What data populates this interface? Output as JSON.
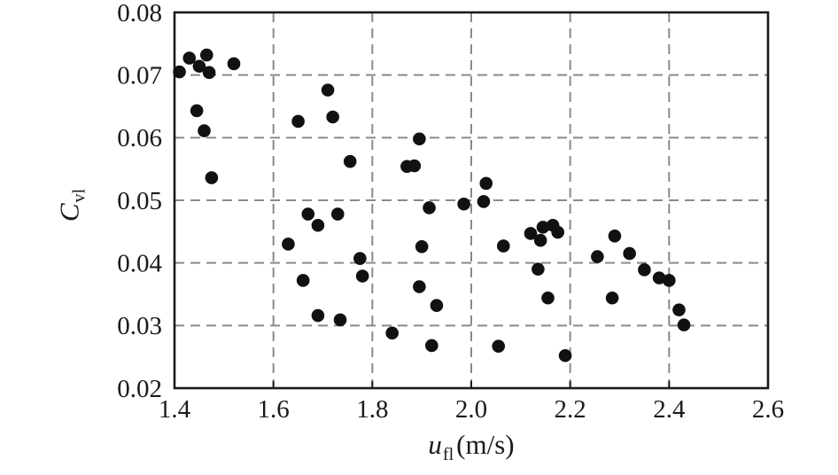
{
  "chart_data": {
    "type": "scatter",
    "title": "",
    "xlabel": "u_fl (m/s)",
    "ylabel": "C_vl",
    "xlabel_parts": {
      "var": "u",
      "sub": "fl",
      "unit": "(m/s)"
    },
    "ylabel_parts": {
      "var": "C",
      "sub": "vl"
    },
    "xlim": [
      1.4,
      2.6
    ],
    "ylim": [
      0.02,
      0.08
    ],
    "xticks": [
      1.4,
      1.6,
      1.8,
      2.0,
      2.2,
      2.4,
      2.6
    ],
    "xtick_labels": [
      "1.4",
      "1.6",
      "1.8",
      "2.0",
      "2.2",
      "2.4",
      "2.6"
    ],
    "yticks": [
      0.02,
      0.03,
      0.04,
      0.05,
      0.06,
      0.07,
      0.08
    ],
    "ytick_labels": [
      "0.02",
      "0.03",
      "0.04",
      "0.05",
      "0.06",
      "0.07",
      "0.08"
    ],
    "grid": true,
    "grid_style": "dashed",
    "legend": false,
    "marker": {
      "shape": "circle",
      "color": "#111111",
      "radius_px": 7.3
    },
    "colors": {
      "frame": "#1a1a1a",
      "grid": "#8a8a8a",
      "background": "#ffffff",
      "text": "#1a1a1a"
    },
    "points": [
      [
        1.41,
        0.0705
      ],
      [
        1.43,
        0.0727
      ],
      [
        1.45,
        0.0714
      ],
      [
        1.465,
        0.0732
      ],
      [
        1.47,
        0.0704
      ],
      [
        1.52,
        0.0718
      ],
      [
        1.445,
        0.0643
      ],
      [
        1.46,
        0.0611
      ],
      [
        1.475,
        0.0536
      ],
      [
        1.65,
        0.0626
      ],
      [
        1.71,
        0.0676
      ],
      [
        1.72,
        0.0633
      ],
      [
        1.755,
        0.0562
      ],
      [
        1.63,
        0.043
      ],
      [
        1.66,
        0.0372
      ],
      [
        1.67,
        0.0478
      ],
      [
        1.69,
        0.046
      ],
      [
        1.73,
        0.0478
      ],
      [
        1.69,
        0.0316
      ],
      [
        1.735,
        0.0309
      ],
      [
        1.775,
        0.0407
      ],
      [
        1.78,
        0.0379
      ],
      [
        1.84,
        0.0288
      ],
      [
        1.87,
        0.0554
      ],
      [
        1.885,
        0.0555
      ],
      [
        1.895,
        0.0598
      ],
      [
        1.9,
        0.0426
      ],
      [
        1.895,
        0.0362
      ],
      [
        1.93,
        0.0332
      ],
      [
        1.92,
        0.0268
      ],
      [
        1.915,
        0.0488
      ],
      [
        1.985,
        0.0494
      ],
      [
        2.025,
        0.0498
      ],
      [
        2.03,
        0.0527
      ],
      [
        2.065,
        0.0427
      ],
      [
        2.055,
        0.0267
      ],
      [
        2.12,
        0.0447
      ],
      [
        2.145,
        0.0457
      ],
      [
        2.165,
        0.046
      ],
      [
        2.175,
        0.0449
      ],
      [
        2.14,
        0.0436
      ],
      [
        2.135,
        0.039
      ],
      [
        2.155,
        0.0344
      ],
      [
        2.19,
        0.0252
      ],
      [
        2.255,
        0.041
      ],
      [
        2.29,
        0.0443
      ],
      [
        2.32,
        0.0415
      ],
      [
        2.35,
        0.0389
      ],
      [
        2.38,
        0.0376
      ],
      [
        2.4,
        0.0372
      ],
      [
        2.285,
        0.0344
      ],
      [
        2.42,
        0.0325
      ],
      [
        2.43,
        0.0301
      ]
    ]
  }
}
